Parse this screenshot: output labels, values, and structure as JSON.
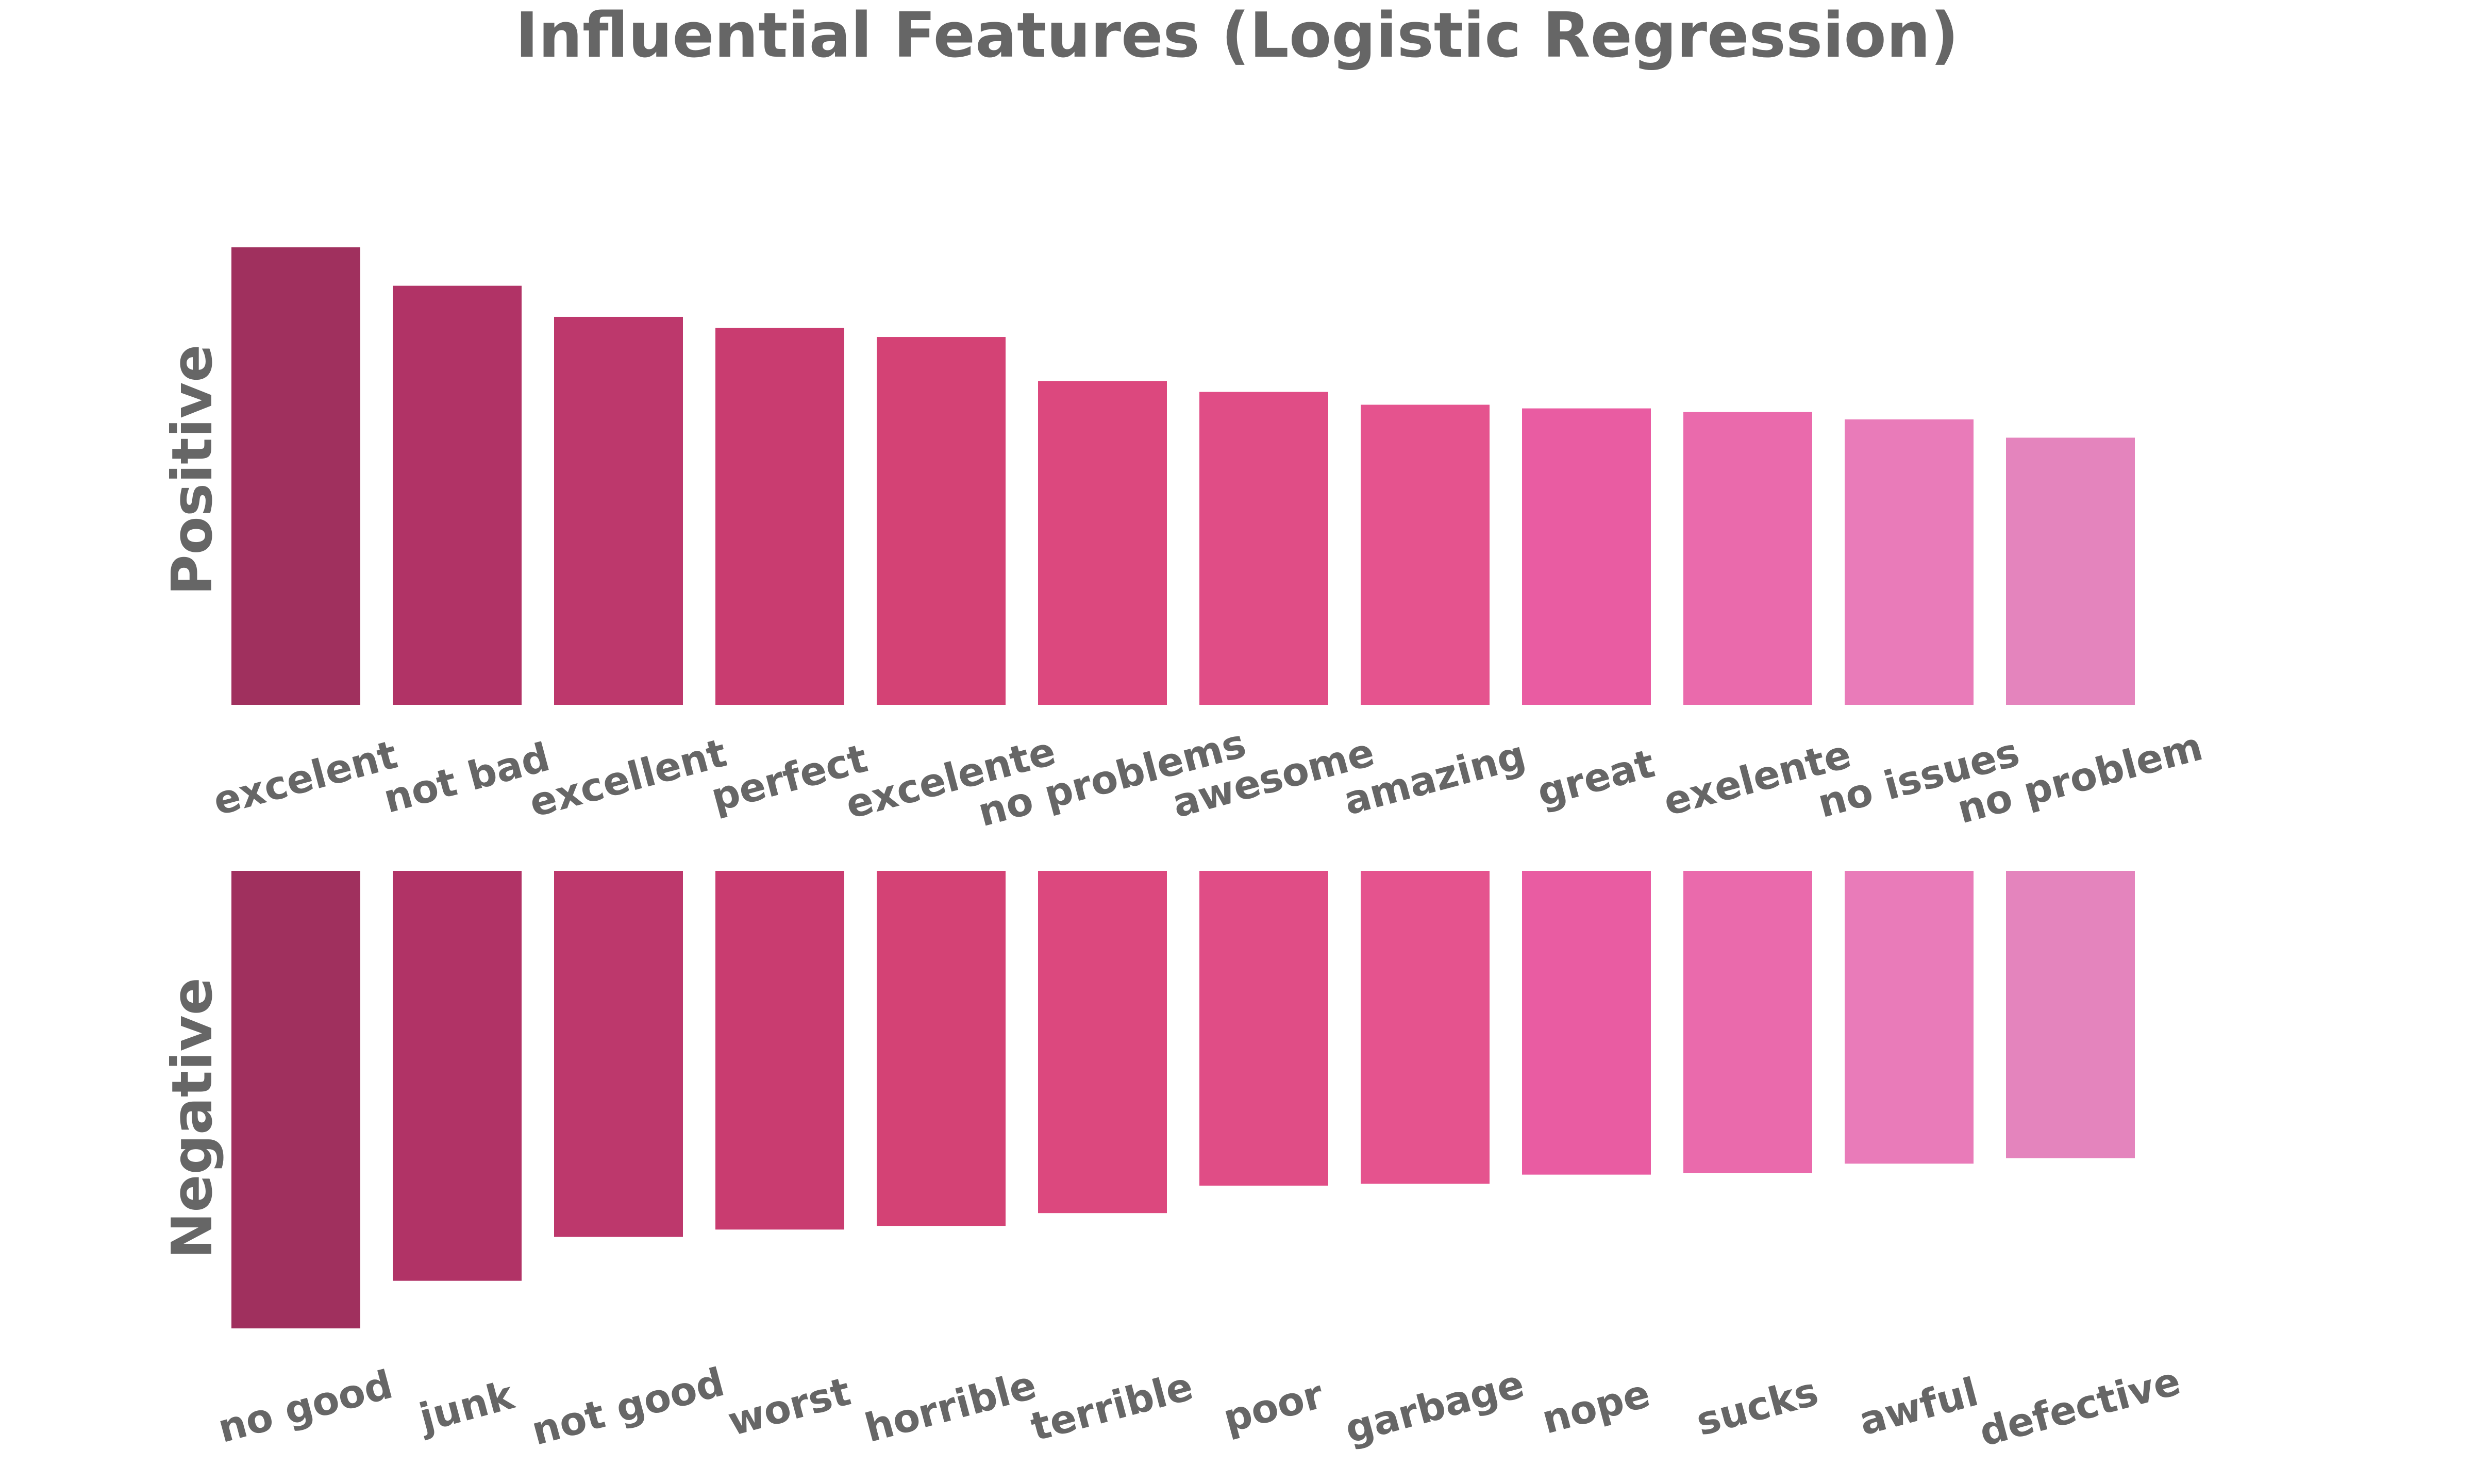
{
  "chart_data": {
    "type": "bar",
    "title": "Influential Features (Logistic Regression)",
    "panels": [
      {
        "name": "Positive",
        "ylabel": "Positive",
        "direction": "up",
        "categories": [
          "excelent",
          "not bad",
          "excellent",
          "perfect",
          "excelente",
          "no problems",
          "awesome",
          "amazing",
          "great",
          "exelente",
          "no issues",
          "no problem"
        ],
        "values": [
          2.5,
          2.29,
          2.12,
          2.06,
          2.01,
          1.77,
          1.71,
          1.64,
          1.62,
          1.6,
          1.56,
          1.46
        ]
      },
      {
        "name": "Negative",
        "ylabel": "Negative",
        "direction": "down",
        "categories": [
          "no good",
          "junk",
          "not good",
          "worst",
          "horrible",
          "terrible",
          "poor",
          "garbage",
          "nope",
          "sucks",
          "awful",
          "defective"
        ],
        "values": [
          -2.5,
          -2.24,
          -2.0,
          -1.96,
          -1.94,
          -1.87,
          -1.72,
          -1.71,
          -1.66,
          -1.65,
          -1.6,
          -1.57
        ]
      }
    ],
    "colors": [
      "#a0305e",
      "#b13366",
      "#bd386c",
      "#c93c70",
      "#d44275",
      "#dc487e",
      "#e04d86",
      "#e5538e",
      "#e95ca2",
      "#ea6aac",
      "#e97bb9",
      "#e484bd"
    ],
    "grid": false,
    "legend": "none"
  }
}
